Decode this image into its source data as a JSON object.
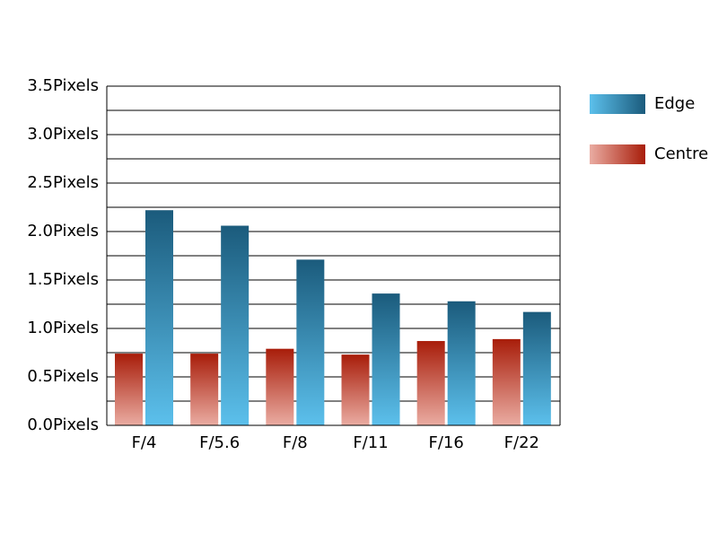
{
  "chart_data": {
    "type": "bar",
    "categories": [
      "F/4",
      "F/5.6",
      "F/8",
      "F/11",
      "F/16",
      "F/22"
    ],
    "series": [
      {
        "name": "Centre",
        "color": "#a81d0a",
        "color_light": "#eaaca2",
        "values": [
          0.74,
          0.74,
          0.79,
          0.73,
          0.87,
          0.89
        ]
      },
      {
        "name": "Edge",
        "color": "#1b5b7c",
        "color_light": "#5cc0ec",
        "values": [
          2.22,
          2.06,
          1.71,
          1.36,
          1.28,
          1.17
        ]
      }
    ],
    "ylim": [
      0,
      3.5
    ],
    "yticks": [
      {
        "value": 0,
        "label": "0.0Pixels"
      },
      {
        "value": 0.5,
        "label": "0.5Pixels"
      },
      {
        "value": 1,
        "label": "1.0Pixels"
      },
      {
        "value": 1.5,
        "label": "1.5Pixels"
      },
      {
        "value": 2,
        "label": "2.0Pixels"
      },
      {
        "value": 2.5,
        "label": "2.5Pixels"
      },
      {
        "value": 3,
        "label": "3.0Pixels"
      },
      {
        "value": 3.5,
        "label": "3.5Pixels"
      }
    ],
    "minor_gridlines": [
      0.25,
      0.75,
      1.25,
      1.75,
      2.25,
      2.75,
      3.25
    ],
    "grid": true,
    "legend_order": [
      "Edge",
      "Centre"
    ]
  }
}
